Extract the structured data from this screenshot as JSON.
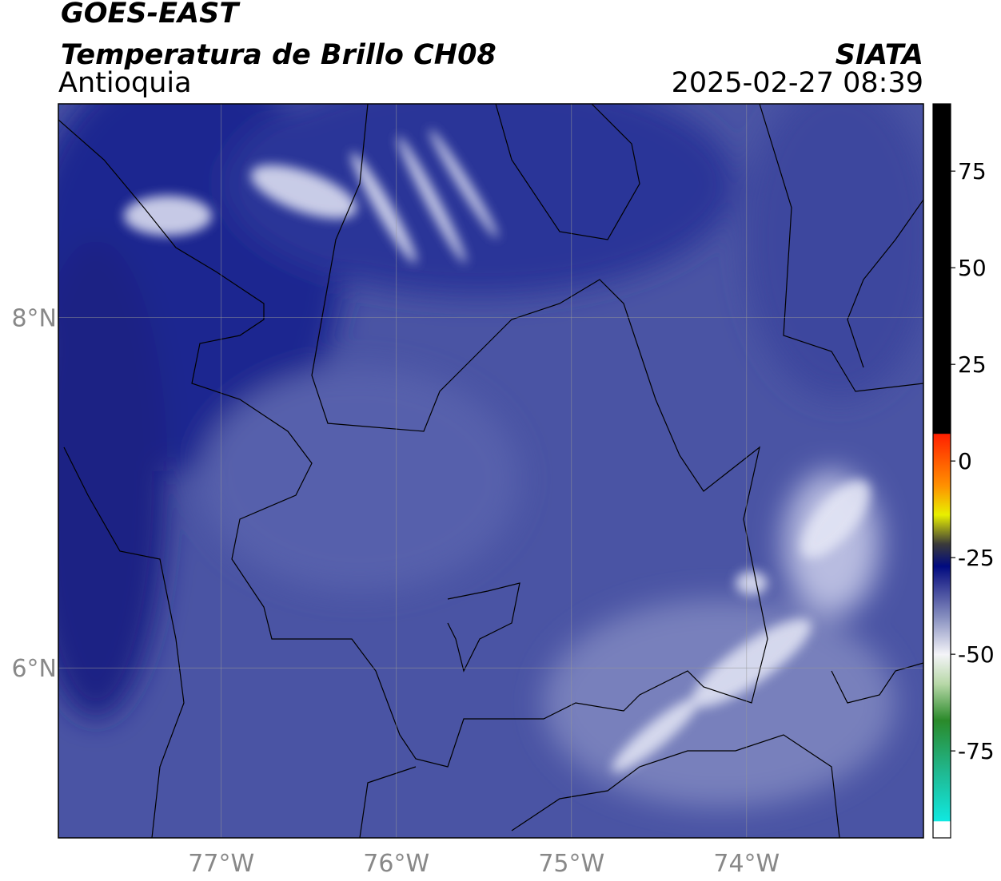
{
  "header": {
    "satellite": "GOES-EAST",
    "product": "Temperatura de Brillo CH08",
    "region": "Antioquia",
    "source": "SIATA",
    "datetime": "2025-02-27 08:39"
  },
  "map": {
    "lonlim": [
      -77.93,
      -72.99
    ],
    "latlim": [
      5.03,
      9.22
    ],
    "lon_ticks": [
      {
        "value": -77,
        "label": "77°W"
      },
      {
        "value": -76,
        "label": "76°W"
      },
      {
        "value": -75,
        "label": "75°W"
      },
      {
        "value": -74,
        "label": "74°W"
      }
    ],
    "lat_ticks": [
      {
        "value": 8,
        "label": "8°N"
      },
      {
        "value": 6,
        "label": "6°N"
      }
    ]
  },
  "colorbar": {
    "lim": [
      -97.5,
      92.4
    ],
    "ticks": [
      75,
      50,
      25,
      0,
      -25,
      -50,
      -75
    ]
  }
}
